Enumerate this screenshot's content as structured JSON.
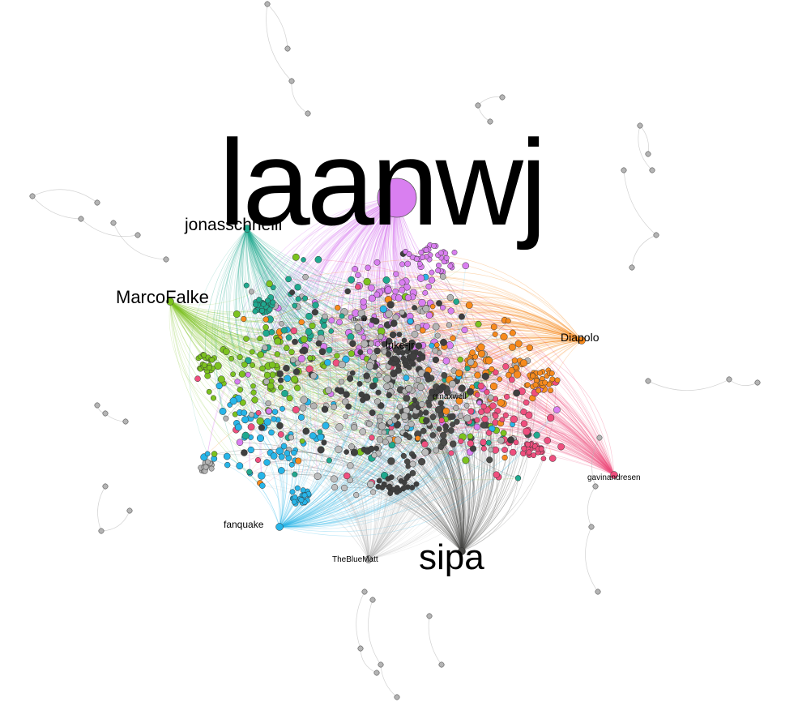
{
  "labels": {
    "laanwj": "laanwj",
    "sipa": "sipa",
    "jonasschnelli": "jonasschnelli",
    "marcofalke": "MarcoFalke",
    "diapolo": "Diapolo",
    "luke_jr": "luke-jr",
    "gmaxwell": "gmaxwell",
    "gavinandresen": "gavinandresen",
    "fanquake": "fanquake",
    "thebluematt": "TheBlueMatt",
    "small_hub": "theuni"
  },
  "colors": {
    "laanwj": "#d97ff0",
    "sipa": "#4a4a48",
    "jonasschnelli": "#1fa98f",
    "marcofalke": "#7cc21f",
    "diapolo": "#f78a1d",
    "gavinandresen": "#ef4f7e",
    "fanquake": "#27b5e8",
    "thebluematt": "#bdbdbd",
    "gray": "#b4b4b4",
    "dark": "#3f3f3f"
  }
}
